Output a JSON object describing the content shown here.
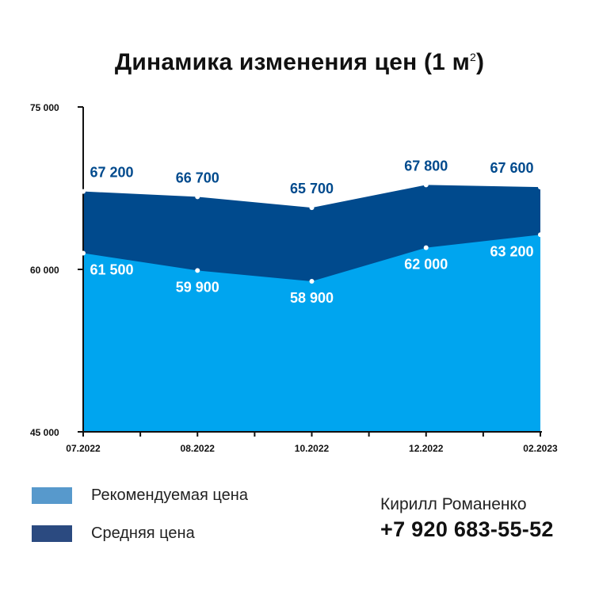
{
  "title": {
    "text": "Динамика изменения цен (1 м",
    "superscript": "2",
    "close": ")"
  },
  "legend": {
    "items": [
      {
        "label": "Рекомендуемая цена",
        "color": "#5799cc"
      },
      {
        "label": "Средняя цена",
        "color": "#2b4a80"
      }
    ]
  },
  "contact": {
    "name": "Кирилл Романенко",
    "phone": "+7 920 683-55-52"
  },
  "chart_data": {
    "type": "area",
    "categories": [
      "07.2022",
      "08.2022",
      "10.2022",
      "12.2022",
      "02.2023"
    ],
    "series": [
      {
        "name": "Средняя цена",
        "values": [
          67200,
          66700,
          65700,
          67800,
          67600
        ],
        "labels": [
          "67 200",
          "66 700",
          "65 700",
          "67 800",
          "67 600"
        ],
        "color": "#004a8d",
        "label_color": "#004a8d"
      },
      {
        "name": "Рекомендуемая цена",
        "values": [
          61500,
          59900,
          58900,
          62000,
          63200
        ],
        "labels": [
          "61 500",
          "59 900",
          "58 900",
          "62 000",
          "63 200"
        ],
        "color": "#00a5ef",
        "label_color": "#ffffff"
      }
    ],
    "y_ticks": [
      "75 000",
      "60 000",
      "45 000"
    ],
    "y_tick_values": [
      75000,
      60000,
      45000
    ],
    "ylim": [
      45000,
      75000
    ],
    "grid": false,
    "legend_position": "bottom-left"
  }
}
